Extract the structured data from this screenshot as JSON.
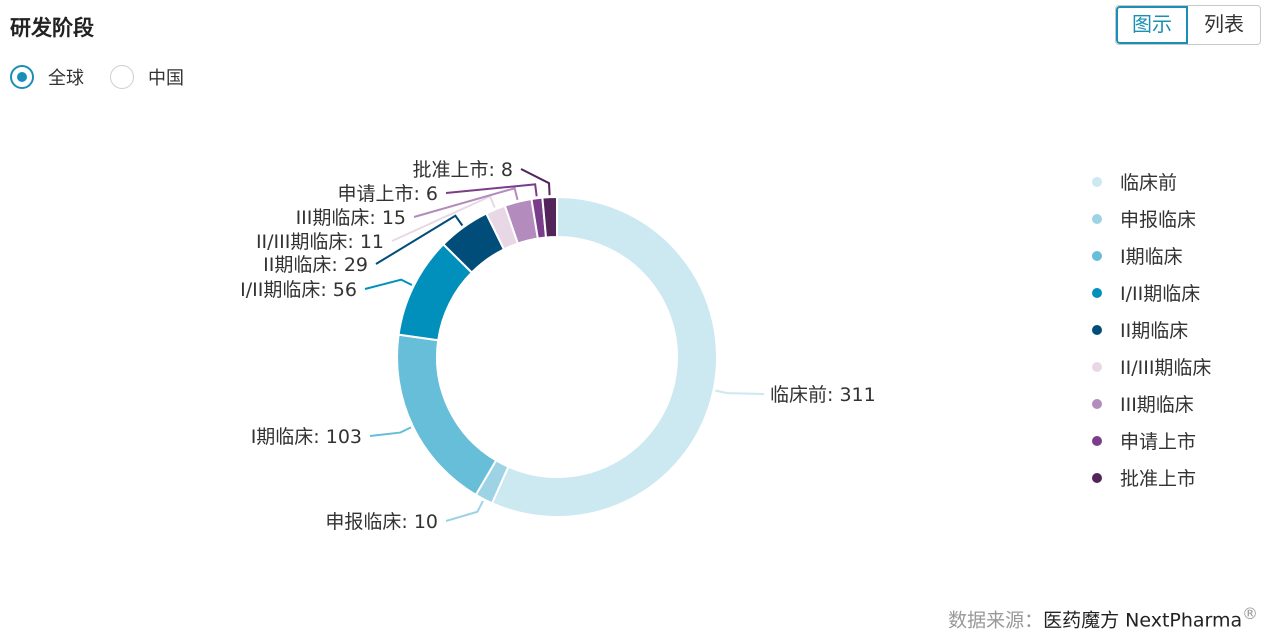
{
  "header": {
    "title": "研发阶段",
    "view_toggle": {
      "chart_label": "图示",
      "list_label": "列表"
    }
  },
  "region_filter": {
    "options": [
      {
        "label": "全球",
        "checked": true
      },
      {
        "label": "中国",
        "checked": false
      }
    ]
  },
  "chart_data": {
    "type": "pie",
    "donut": true,
    "categories": [
      "临床前",
      "申报临床",
      "I期临床",
      "I/II期临床",
      "II期临床",
      "II/III期临床",
      "III期临床",
      "申请上市",
      "批准上市"
    ],
    "values": [
      311,
      10,
      103,
      56,
      29,
      11,
      15,
      6,
      8
    ],
    "colors": [
      "#cce8f1",
      "#9dd3e4",
      "#67bed8",
      "#0090bb",
      "#004d7a",
      "#e8d8e6",
      "#b38cbd",
      "#7a3d8a",
      "#52245a"
    ],
    "data_labels": [
      "临床前: 311",
      "申报临床: 10",
      "I期临床: 103",
      "I/II期临床: 56",
      "II期临床: 29",
      "II/III期临床: 11",
      "III期临床: 15",
      "申请上市: 6",
      "批准上市: 8"
    ],
    "legend_position": "right"
  },
  "source": {
    "prefix": "数据来源：",
    "brand": "医药魔方 NextPharma",
    "mark": "®"
  }
}
